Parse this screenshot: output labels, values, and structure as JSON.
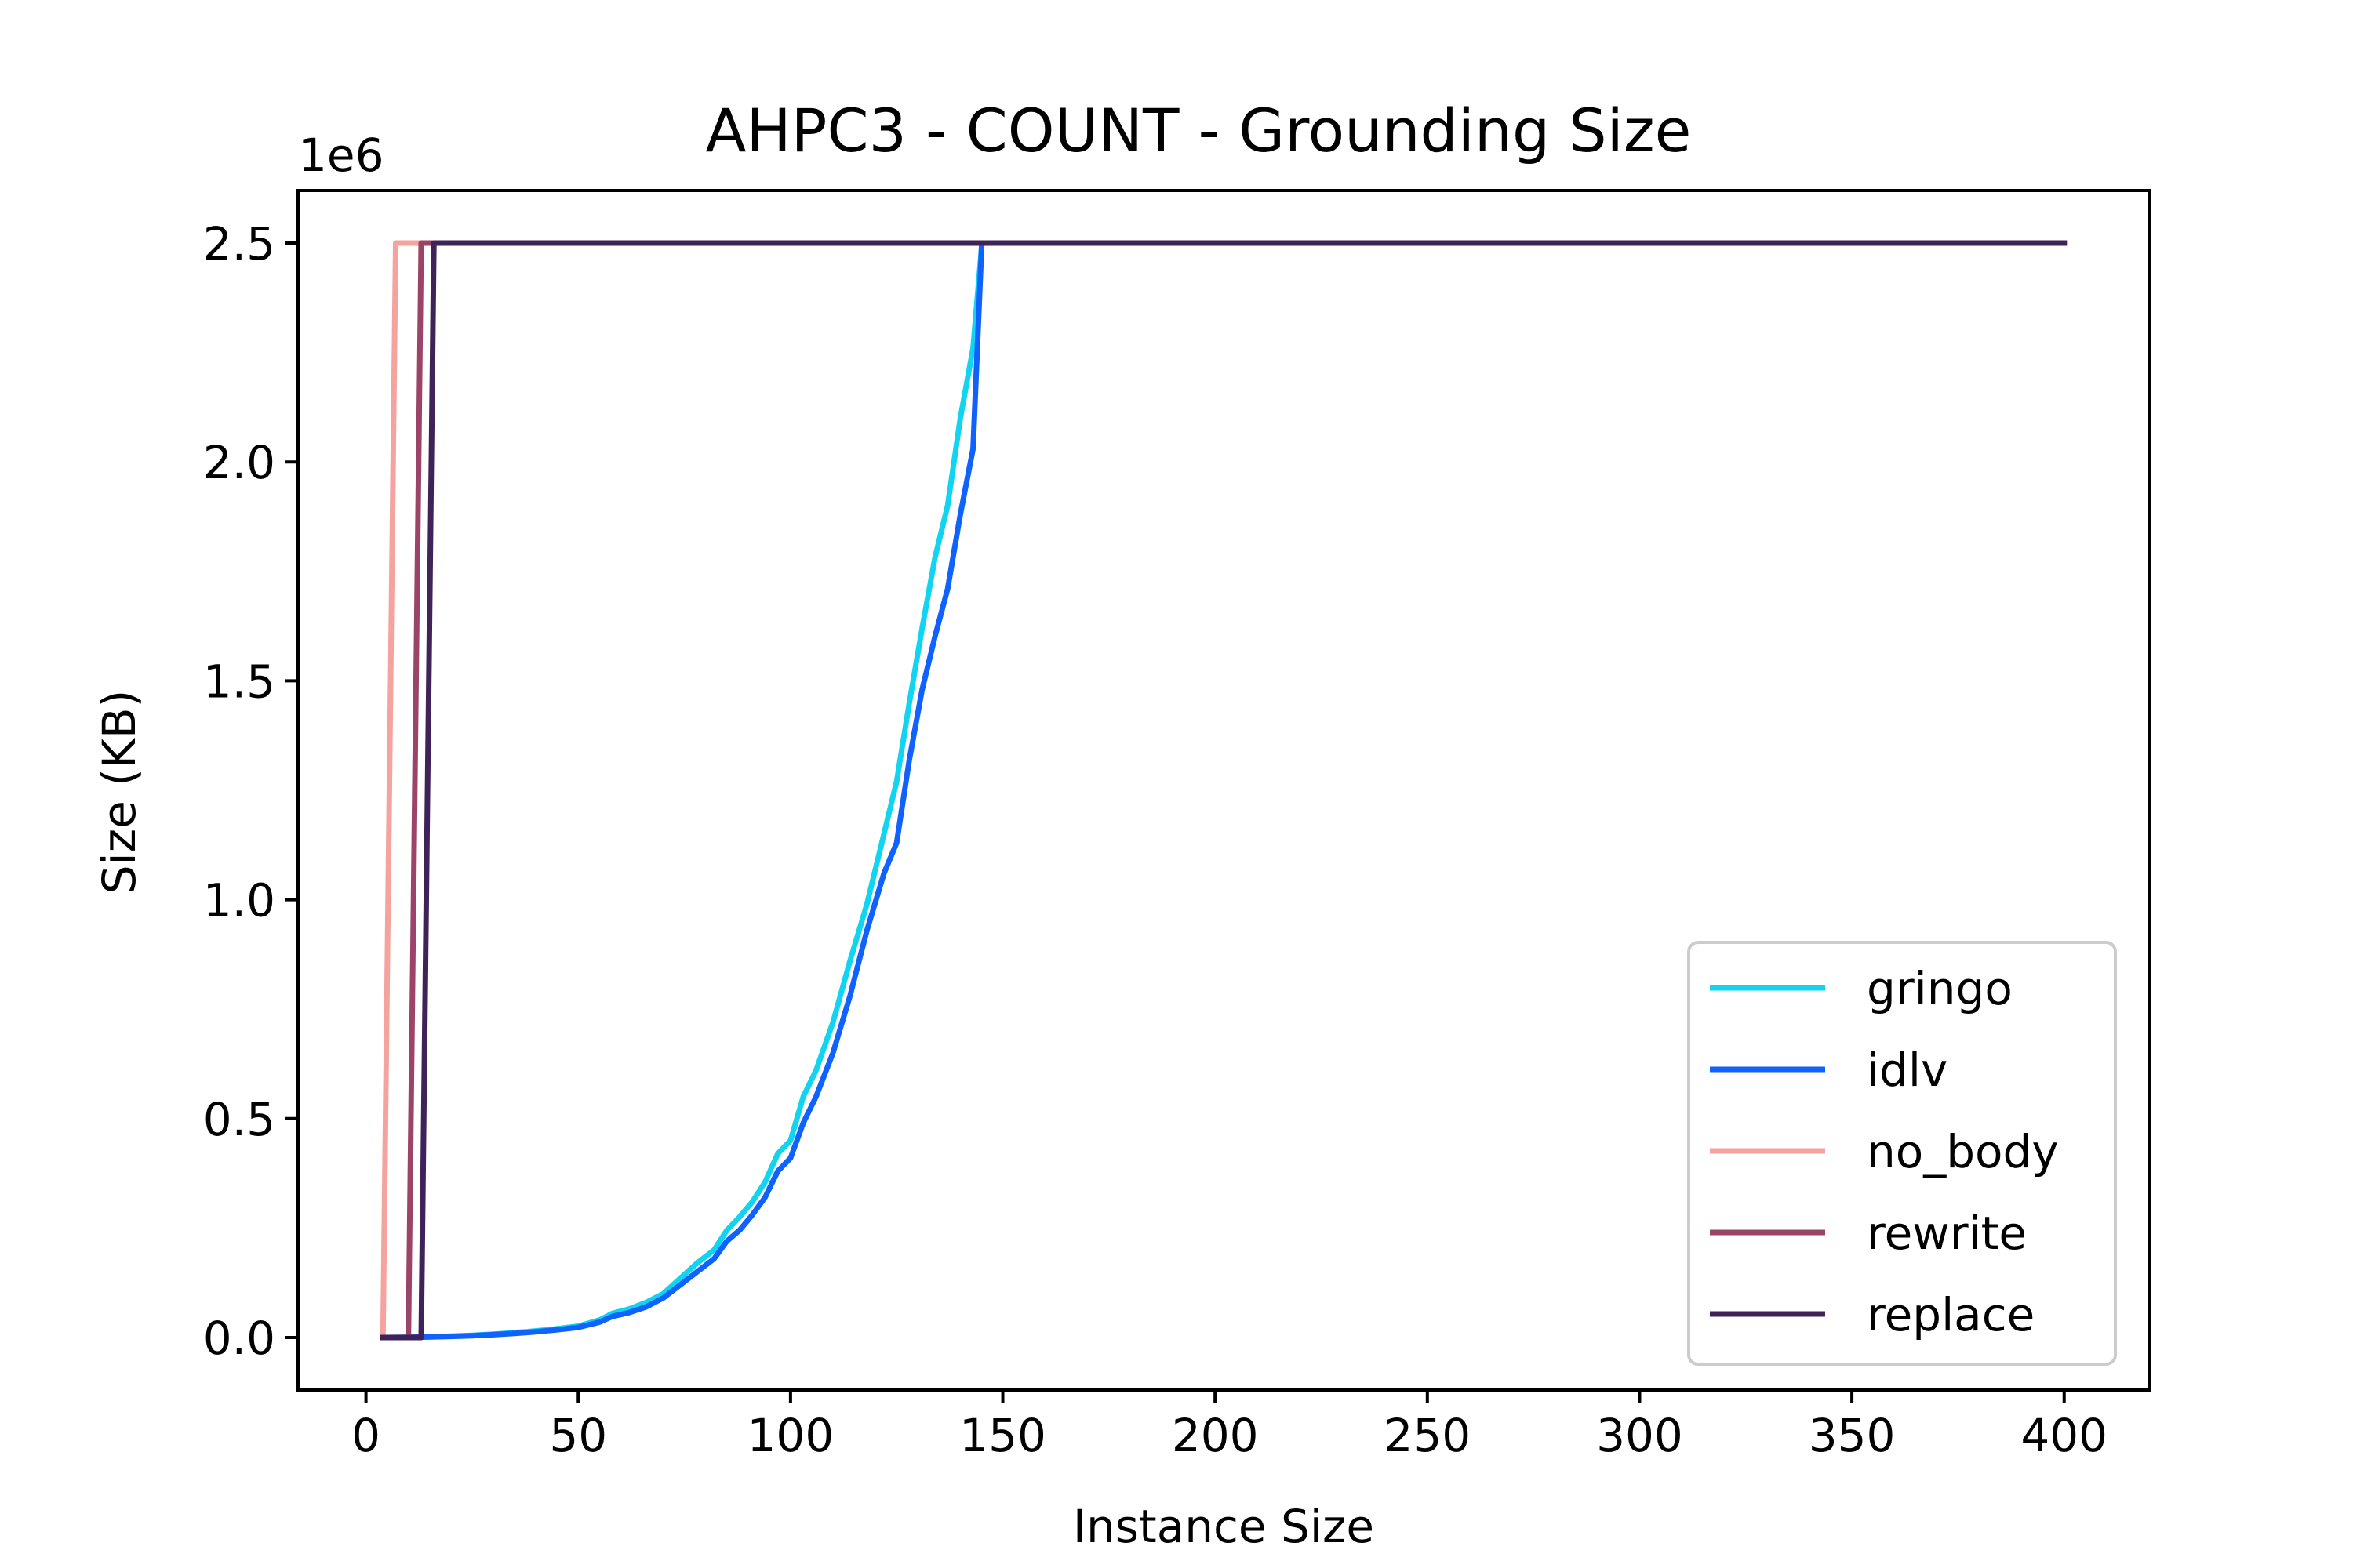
{
  "chart_data": {
    "type": "line",
    "title": "AHPC3 - COUNT - Grounding Size",
    "xlabel": "Instance Size",
    "ylabel": "Size (KB)",
    "y_offset_label": "1e6",
    "xlim": [
      -16,
      420
    ],
    "ylim": [
      -120000,
      2620000
    ],
    "xticks": [
      0,
      50,
      100,
      150,
      200,
      250,
      300,
      350,
      400
    ],
    "xtick_labels": [
      "0",
      "50",
      "100",
      "150",
      "200",
      "250",
      "300",
      "350",
      "400"
    ],
    "yticks": [
      0,
      500000,
      1000000,
      1500000,
      2000000,
      2500000
    ],
    "ytick_labels": [
      "0.0",
      "0.5",
      "1.0",
      "1.5",
      "2.0",
      "2.5"
    ],
    "grid": false,
    "legend_position": "lower right",
    "series": [
      {
        "name": "gringo",
        "color": "#10d4f0",
        "x": [
          4,
          10,
          15,
          20,
          25,
          30,
          35,
          40,
          45,
          50,
          55,
          58,
          62,
          66,
          70,
          74,
          78,
          82,
          85,
          88,
          91,
          94,
          97,
          100,
          103,
          106,
          110,
          114,
          118,
          122,
          125,
          128,
          131,
          134,
          137,
          140,
          143,
          145
        ],
        "y": [
          0,
          400,
          1500,
          3000,
          5000,
          7500,
          11000,
          15000,
          20000,
          26000,
          40000,
          55000,
          65000,
          80000,
          100000,
          135000,
          170000,
          200000,
          245000,
          275000,
          310000,
          355000,
          420000,
          450000,
          550000,
          610000,
          720000,
          860000,
          990000,
          1150000,
          1270000,
          1450000,
          1620000,
          1780000,
          1900000,
          2100000,
          2260000,
          2490000
        ]
      },
      {
        "name": "idlv",
        "color": "#0f62fe",
        "x": [
          4,
          10,
          15,
          20,
          25,
          30,
          35,
          40,
          45,
          50,
          55,
          58,
          62,
          66,
          70,
          74,
          78,
          82,
          85,
          88,
          91,
          94,
          97,
          100,
          103,
          106,
          110,
          114,
          118,
          122,
          125,
          128,
          131,
          134,
          137,
          140,
          143,
          145
        ],
        "y": [
          0,
          300,
          1200,
          2500,
          4000,
          6500,
          9500,
          13000,
          17500,
          23000,
          35000,
          48000,
          57000,
          70000,
          90000,
          120000,
          150000,
          180000,
          220000,
          245000,
          280000,
          320000,
          380000,
          410000,
          490000,
          550000,
          650000,
          780000,
          930000,
          1060000,
          1130000,
          1320000,
          1480000,
          1600000,
          1710000,
          1880000,
          2030000,
          2490000
        ]
      },
      {
        "name": "no_body",
        "color": "#f4a39e",
        "x": [
          4,
          7,
          400
        ],
        "y": [
          0,
          2500000,
          2500000
        ]
      },
      {
        "name": "rewrite",
        "color": "#9c4467",
        "x": [
          4,
          10,
          13,
          400
        ],
        "y": [
          0,
          0,
          2500000,
          2500000
        ]
      },
      {
        "name": "replace",
        "color": "#3f2258",
        "x": [
          4,
          13,
          16,
          400
        ],
        "y": [
          0,
          0,
          2500000,
          2500000
        ]
      }
    ]
  }
}
